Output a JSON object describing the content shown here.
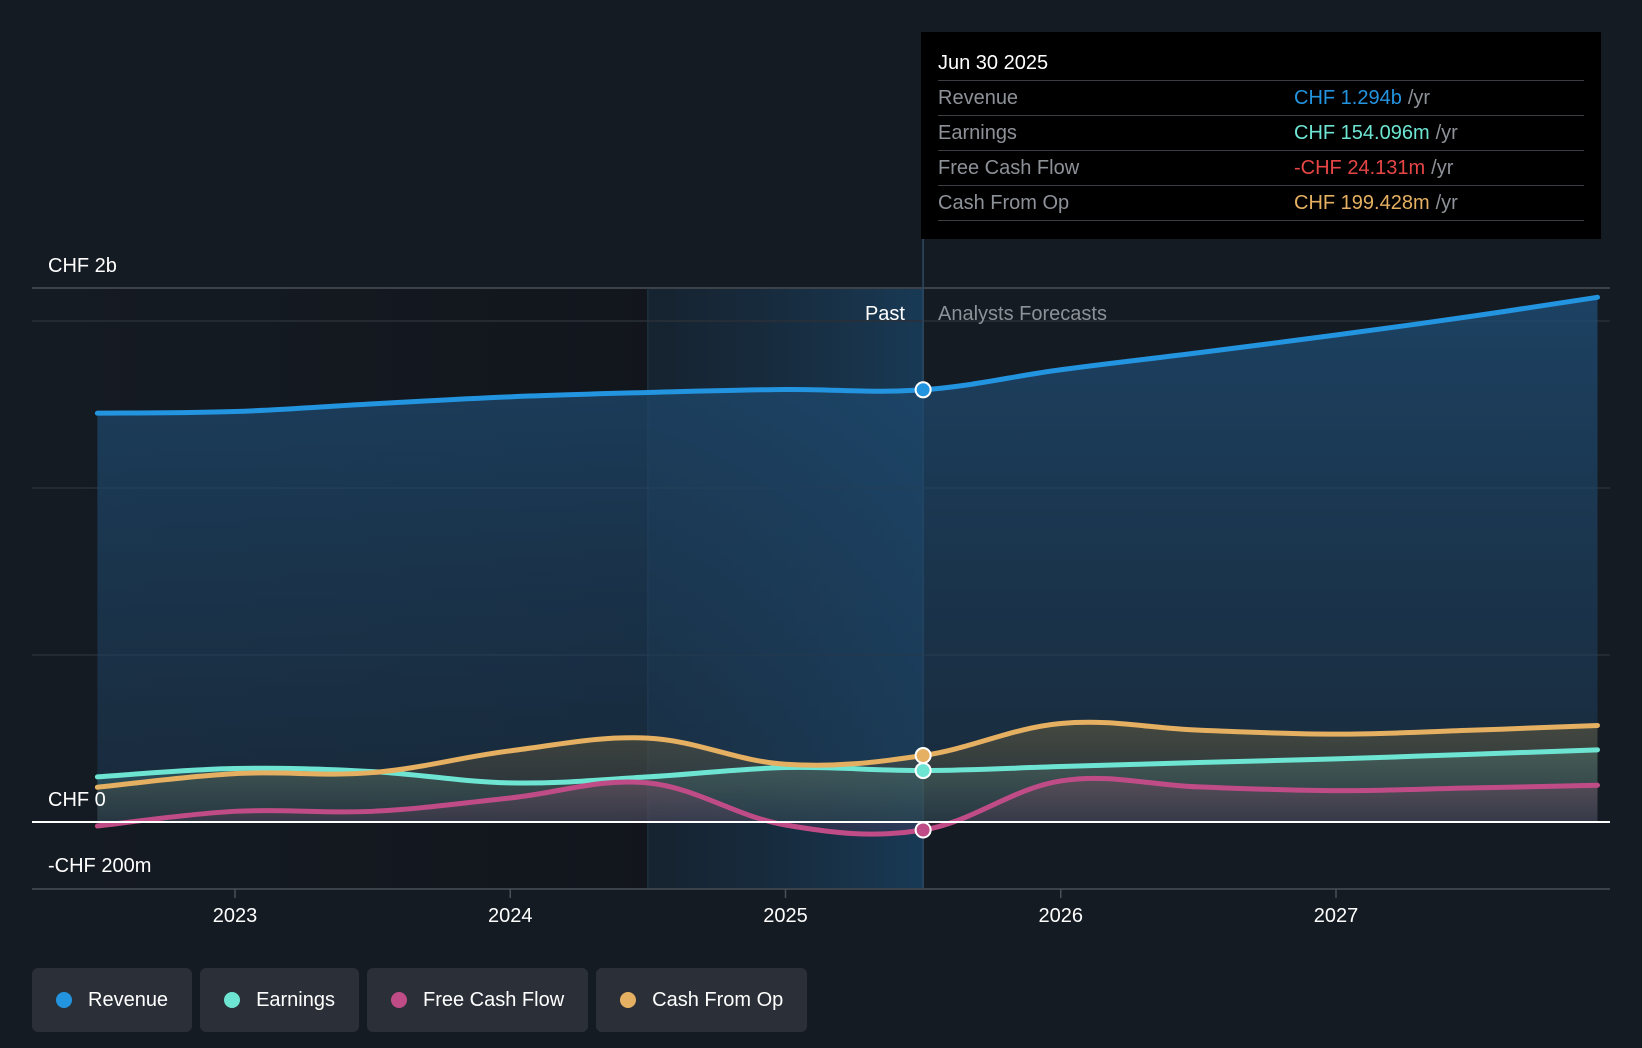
{
  "tooltip": {
    "date": "Jun 30 2025",
    "unit": "/yr",
    "rows": [
      {
        "name": "Revenue",
        "value": "CHF 1.294b",
        "color": "#2394df"
      },
      {
        "name": "Earnings",
        "value": "CHF 154.096m",
        "color": "#6ee5d3"
      },
      {
        "name": "Free Cash Flow",
        "value": "-CHF 24.131m",
        "color": "#e84646"
      },
      {
        "name": "Cash From Op",
        "value": "CHF 199.428m",
        "color": "#e5b061"
      }
    ]
  },
  "legend": [
    {
      "label": "Revenue",
      "color": "#2394df"
    },
    {
      "label": "Earnings",
      "color": "#6ee5d3"
    },
    {
      "label": "Free Cash Flow",
      "color": "#c04c87"
    },
    {
      "label": "Cash From Op",
      "color": "#e5b061"
    }
  ],
  "chart_data": {
    "type": "line",
    "title": "",
    "xlabel": "",
    "ylabel": "",
    "currency": "CHF",
    "x_tick_labels": [
      "2023",
      "2024",
      "2025",
      "2026",
      "2027"
    ],
    "y_tick_labels": [
      {
        "label": "CHF 2b",
        "value": 2000
      },
      {
        "label": "CHF 0",
        "value": 0
      },
      {
        "label": "-CHF 200m",
        "value": -200
      }
    ],
    "ylim": [
      -200,
      1600
    ],
    "gridlines_m": [
      500,
      1000,
      1500
    ],
    "xlim": [
      2022.5,
      2027.95
    ],
    "past_label": "Past",
    "forecast_label": "Analysts Forecasts",
    "highlight_start": 2024.5,
    "divider_x": 2025.5,
    "units": "CHF millions per year",
    "x": [
      2022.5,
      2023.0,
      2023.5,
      2024.0,
      2024.5,
      2025.0,
      2025.5,
      2026.0,
      2026.5,
      2027.0,
      2027.5,
      2027.95
    ],
    "series": [
      {
        "name": "Revenue",
        "color": "#2394df",
        "values": [
          1224,
          1229,
          1252,
          1273,
          1286,
          1295,
          1294,
          1354,
          1405,
          1458,
          1515,
          1571
        ]
      },
      {
        "name": "Earnings",
        "color": "#6ee5d3",
        "values": [
          135,
          160,
          151,
          117,
          135,
          163,
          154,
          166,
          178,
          189,
          203,
          216
        ]
      },
      {
        "name": "Free Cash Flow",
        "color": "#c04c87",
        "values": [
          -12,
          32,
          32,
          72,
          117,
          -9,
          -24,
          123,
          105,
          94,
          102,
          110
        ]
      },
      {
        "name": "Cash From Op",
        "color": "#e5b061",
        "values": [
          104,
          145,
          148,
          213,
          251,
          173,
          199,
          295,
          275,
          263,
          275,
          289
        ]
      }
    ],
    "highlighted_point_x": 2025.5,
    "legend_position": "bottom-left"
  }
}
